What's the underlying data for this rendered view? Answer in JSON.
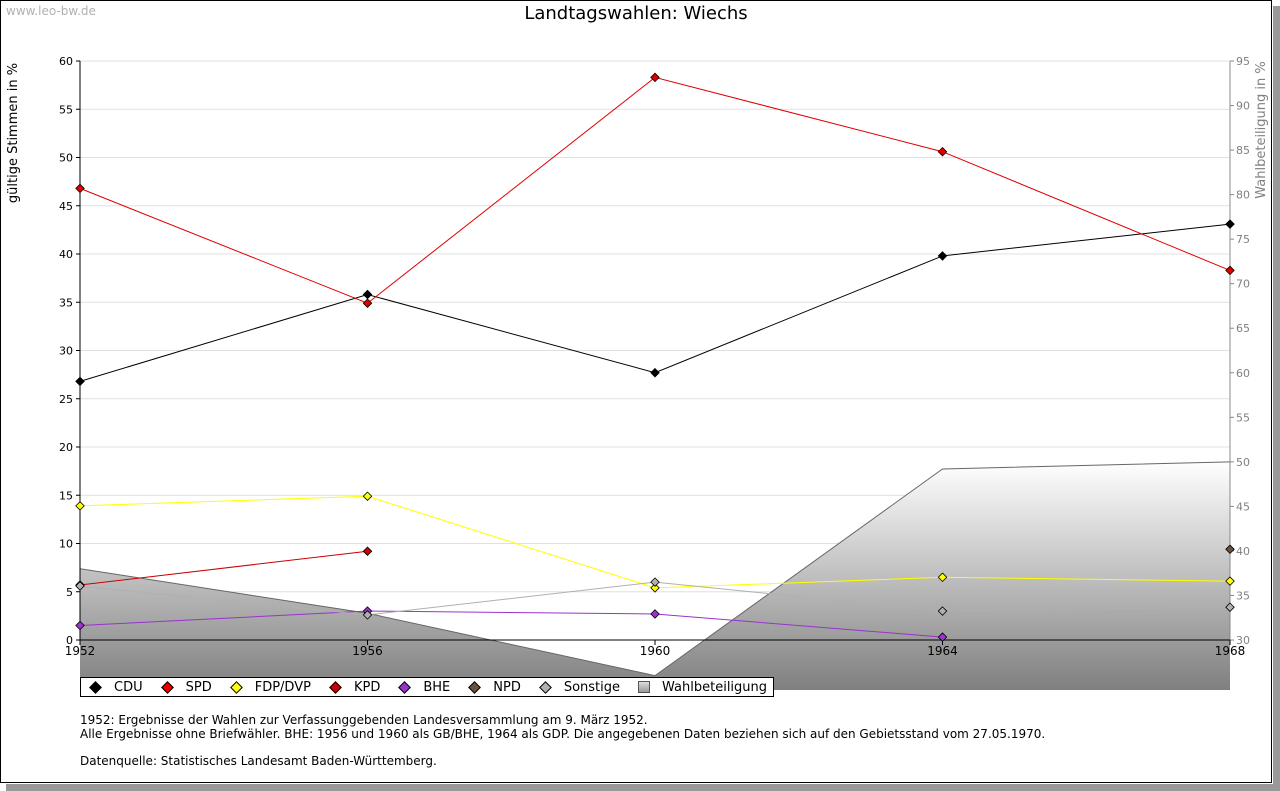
{
  "watermark": "www.leo-bw.de",
  "chart_data": {
    "type": "line",
    "title": "Landtagswahlen: Wiechs",
    "ylabel_left": "gültige Stimmen in %",
    "ylabel_right": "Wahlbeteiligung in %",
    "x": [
      "1952",
      "1956",
      "1960",
      "1964",
      "1968"
    ],
    "ylim_left": [
      0,
      60
    ],
    "yticks_left": [
      0,
      5,
      10,
      15,
      20,
      25,
      30,
      35,
      40,
      45,
      50,
      55,
      60
    ],
    "ylim_right": [
      30,
      95
    ],
    "yticks_right": [
      30,
      35,
      40,
      45,
      50,
      55,
      60,
      65,
      70,
      75,
      80,
      85,
      90,
      95
    ],
    "series": [
      {
        "name": "CDU",
        "color": "#000000",
        "values": [
          26.8,
          35.8,
          27.7,
          39.8,
          43.1
        ]
      },
      {
        "name": "SPD",
        "color": "#e00000",
        "values": [
          46.8,
          34.9,
          58.3,
          50.6,
          38.3
        ]
      },
      {
        "name": "FDP/DVP",
        "color": "#ffff00",
        "values": [
          13.9,
          14.9,
          5.4,
          6.5,
          6.1
        ]
      },
      {
        "name": "KPD",
        "color": "#cc0000",
        "values": [
          5.7,
          9.2,
          null,
          null,
          null
        ]
      },
      {
        "name": "BHE",
        "color": "#9933cc",
        "values": [
          1.5,
          3.0,
          2.7,
          0.3,
          null
        ]
      },
      {
        "name": "NPD",
        "color": "#6b4f3f",
        "values": [
          null,
          null,
          null,
          null,
          9.4
        ]
      },
      {
        "name": "Sonstige",
        "color": "#b0b0b0",
        "values": [
          5.6,
          2.6,
          6.0,
          3.0,
          3.4
        ]
      }
    ],
    "turnout": {
      "name": "Wahlbeteiligung",
      "values": [
        38.0,
        33.0,
        26.0,
        49.2,
        50.0
      ]
    },
    "grid": true,
    "legend_position": "bottom-left"
  },
  "legend": [
    {
      "label": "CDU",
      "color": "#000000",
      "kind": "diamond"
    },
    {
      "label": "SPD",
      "color": "#e00000",
      "kind": "diamond"
    },
    {
      "label": "FDP/DVP",
      "color": "#ffff00",
      "kind": "diamond"
    },
    {
      "label": "KPD",
      "color": "#cc0000",
      "kind": "diamond"
    },
    {
      "label": "BHE",
      "color": "#9933cc",
      "kind": "diamond"
    },
    {
      "label": "NPD",
      "color": "#6b4f3f",
      "kind": "diamond"
    },
    {
      "label": "Sonstige",
      "color": "#b0b0b0",
      "kind": "diamond"
    },
    {
      "label": "Wahlbeteiligung",
      "color": "#aaaaaa",
      "kind": "square"
    }
  ],
  "notes": [
    "1952: Ergebnisse der Wahlen zur Verfassunggebenden Landesversammlung am 9. März 1952.",
    "Alle Ergebnisse ohne Briefwähler. BHE: 1956 und 1960 als GB/BHE, 1964 als GDP. Die angegebenen Daten beziehen sich auf den Gebietsstand vom 27.05.1970."
  ],
  "source": "Datenquelle: Statistisches Landesamt Baden-Württemberg."
}
